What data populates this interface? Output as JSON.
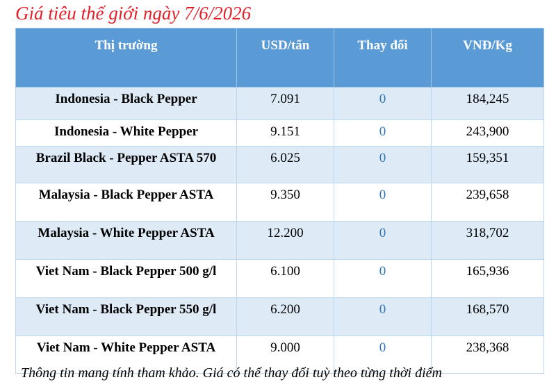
{
  "header": {
    "title": "Giá tiêu thế giới ngày 7/6/2026"
  },
  "table": {
    "columns": [
      "Thị trường",
      "USD/tấn",
      "Thay đổi",
      "VNĐ/Kg"
    ],
    "rows": [
      [
        "Indonesia - Black Pepper",
        "7.091",
        "0",
        "184,245"
      ],
      [
        "Indonesia - White Pepper",
        "9.151",
        "0",
        "243,900"
      ],
      [
        "Brazil Black - Pepper ASTA 570",
        "6.025",
        "0",
        "159,351"
      ],
      [
        "Malaysia - Black Pepper ASTA",
        "9.350",
        "0",
        "239,658"
      ],
      [
        "Malaysia - White Pepper ASTA",
        "12.200",
        "0",
        "318,702"
      ],
      [
        "Viet Nam - Black Pepper 500 g/l",
        "6.100",
        "0",
        "165,936"
      ],
      [
        "Viet Nam - Black Pepper 550 g/l",
        "6.200",
        "0",
        "168,570"
      ],
      [
        "Viet Nam - White Pepper ASTA",
        "9.000",
        "0",
        "238,368"
      ]
    ]
  },
  "footer": {
    "note": "Thông tin mang tính tham khảo. Giá có thể thay đổi tuỳ theo từng thời điểm"
  }
}
